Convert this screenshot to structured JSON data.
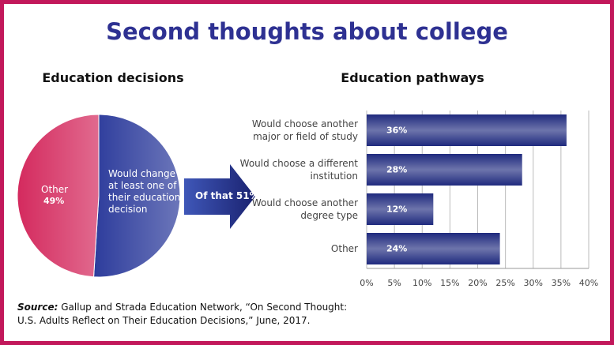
{
  "title": "Second thoughts about college",
  "source_label": "Source:",
  "source_text": "Gallup and Strada Education Network, “On Second Thought: U.S. Adults Reflect on Their Education Decisions,” June, 2017.",
  "chart_data": [
    {
      "type": "pie",
      "title": "Education decisions",
      "categories": [
        "Would change at least one of their education decision",
        "Other"
      ],
      "values": [
        51,
        49
      ],
      "value_labels": [
        null,
        "49%"
      ],
      "colors": [
        "#2d3c9c",
        "#d42a5e"
      ],
      "annotation": "Of that 51%:"
    },
    {
      "type": "bar",
      "title": "Education pathways",
      "categories": [
        "Would choose another major or field of study",
        "Would choose a different institution",
        "Would choose another degree type",
        "Other"
      ],
      "values": [
        36,
        28,
        12,
        24
      ],
      "value_labels": [
        "36%",
        "28%",
        "12%",
        "24%"
      ],
      "color": "#1f2a7e",
      "xlim": [
        0,
        40
      ],
      "xticks": [
        {
          "value": 0,
          "label": "0%"
        },
        {
          "value": 5,
          "label": "5%"
        },
        {
          "value": 10,
          "label": "10%"
        },
        {
          "value": 15,
          "label": "15%"
        },
        {
          "value": 20,
          "label": "20%"
        },
        {
          "value": 25,
          "label": "25%"
        },
        {
          "value": 30,
          "label": "30%"
        },
        {
          "value": 35,
          "label": "35%"
        },
        {
          "value": 40,
          "label": "40%"
        }
      ],
      "grid": true
    }
  ]
}
